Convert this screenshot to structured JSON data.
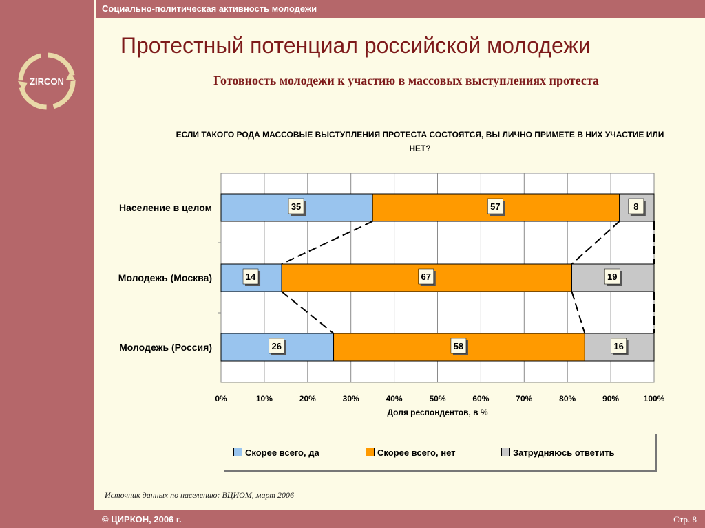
{
  "header": {
    "section_title": "Социально-политическая активность молодежи"
  },
  "logo": {
    "text": "ZIRCON"
  },
  "page": {
    "title": "Протестный потенциал российской молодежи",
    "subtitle": "Готовность молодежи к участию в массовых выступлениях протеста",
    "question": "ЕСЛИ ТАКОГО РОДА МАССОВЫЕ ВЫСТУПЛЕНИЯ ПРОТЕСТА СОСТОЯТСЯ, ВЫ ЛИЧНО ПРИМЕТЕ В НИХ УЧАСТИЕ ИЛИ НЕТ?",
    "source": "Источник данных по населению: ВЦИОМ, март 2006"
  },
  "footer": {
    "copyright": "©  ЦИРКОН, 2006 г.",
    "page_number": "Стр. 8"
  },
  "chart_data": {
    "type": "bar",
    "orientation": "horizontal",
    "stacked": true,
    "categories": [
      "Население в целом",
      "Молодежь (Москва)",
      "Молодежь (Россия)"
    ],
    "series": [
      {
        "name": "Скорее всего, да",
        "values": [
          35,
          14,
          26
        ],
        "color": "#99c4ee"
      },
      {
        "name": "Скорее всего, нет",
        "values": [
          57,
          67,
          58
        ],
        "color": "#ff9a00"
      },
      {
        "name": "Затрудняюсь ответить",
        "values": [
          8,
          19,
          16
        ],
        "color": "#c8c8c8"
      }
    ],
    "xlabel": "Доля респондентов, в %",
    "xlim": [
      0,
      100
    ],
    "x_ticks": [
      "0%",
      "10%",
      "20%",
      "30%",
      "40%",
      "50%",
      "60%",
      "70%",
      "80%",
      "90%",
      "100%"
    ],
    "grid": true,
    "legend": "bottom",
    "connector_lines": "dashed"
  }
}
